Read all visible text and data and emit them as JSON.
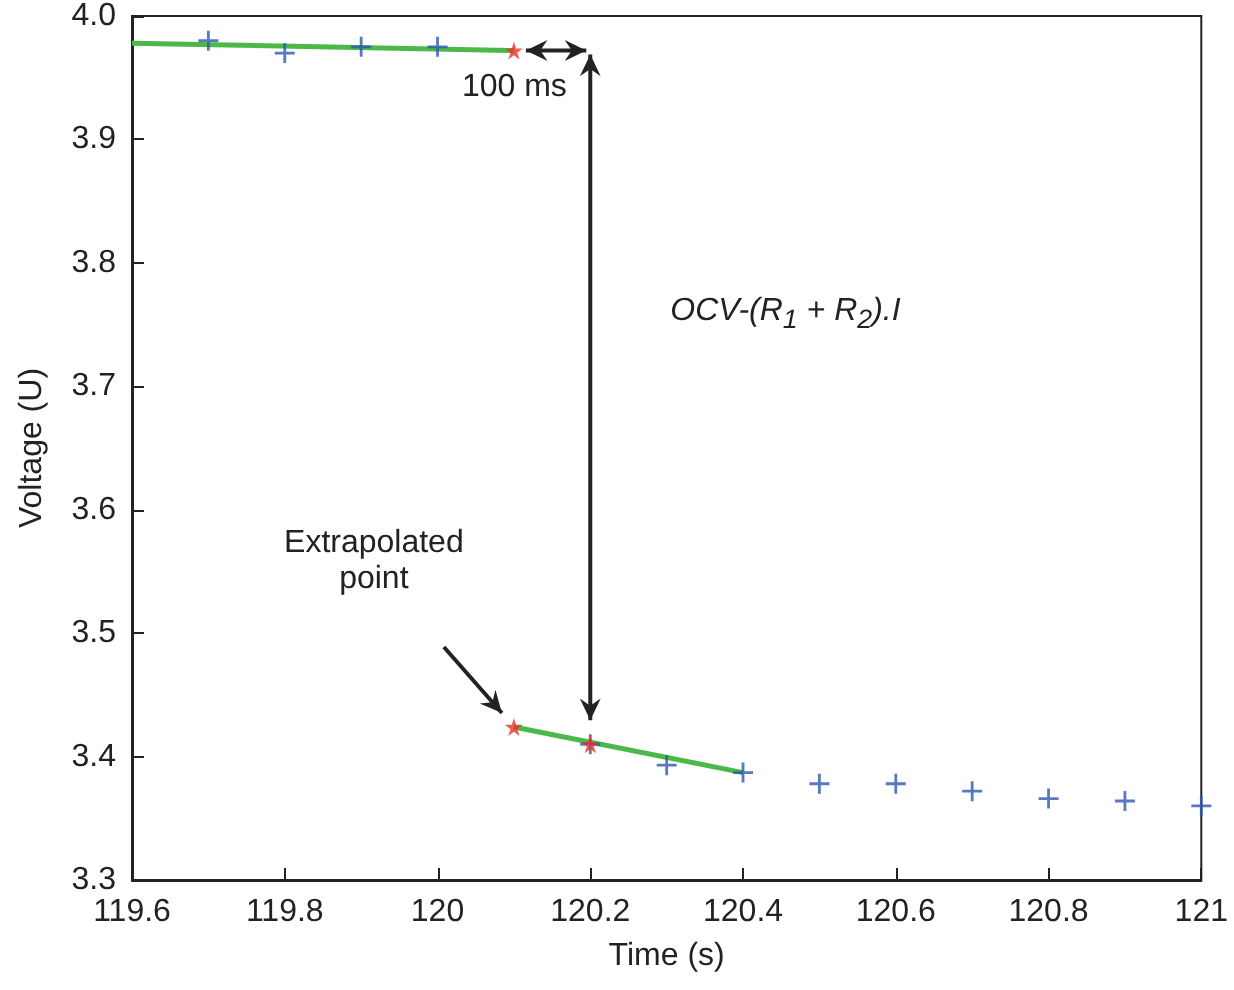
{
  "chart_data": {
    "type": "scatter",
    "xlabel": "Time (s)",
    "ylabel": "Voltage (U)",
    "xlim": [
      119.6,
      121
    ],
    "xticks": [
      119.6,
      119.8,
      120,
      120.2,
      120.4,
      120.6,
      120.8,
      121
    ],
    "ylim": [
      3.3,
      4.0
    ],
    "yticks": [
      3.3,
      3.4,
      3.5,
      3.6,
      3.7,
      3.8,
      3.9,
      {
        "value": 4.0,
        "label": "4.0"
      }
    ],
    "series": [
      {
        "type": "line",
        "color": "#4cb848",
        "marker": "none",
        "line_style": "solid",
        "x": [
          119.6,
          120.1
        ],
        "values": [
          3.978,
          3.972
        ]
      },
      {
        "type": "line",
        "color": "#4cb848",
        "marker": "none",
        "line_style": "solid",
        "x": [
          120.1,
          120.4
        ],
        "values": [
          3.424,
          3.387
        ]
      },
      {
        "color": "#2e56b0",
        "marker": "cross",
        "x": [
          119.7,
          119.8,
          119.9,
          120,
          120.2,
          120.3,
          120.4,
          120.5,
          120.6,
          120.7,
          120.8,
          120.9,
          121
        ],
        "values": [
          3.98,
          3.97,
          3.975,
          3.975,
          3.41,
          3.393,
          3.387,
          3.378,
          3.378,
          3.372,
          3.366,
          3.364,
          3.36
        ]
      },
      {
        "color": "#e8322b",
        "marker": "star",
        "x": [
          120.1,
          120.1,
          120.2
        ],
        "values": [
          3.972,
          3.424,
          3.41
        ]
      }
    ],
    "annotations": [
      "100 ms",
      "OCV-(R$_{1}$ + R$_{2}$).I",
      "Extrapolated point"
    ]
  }
}
